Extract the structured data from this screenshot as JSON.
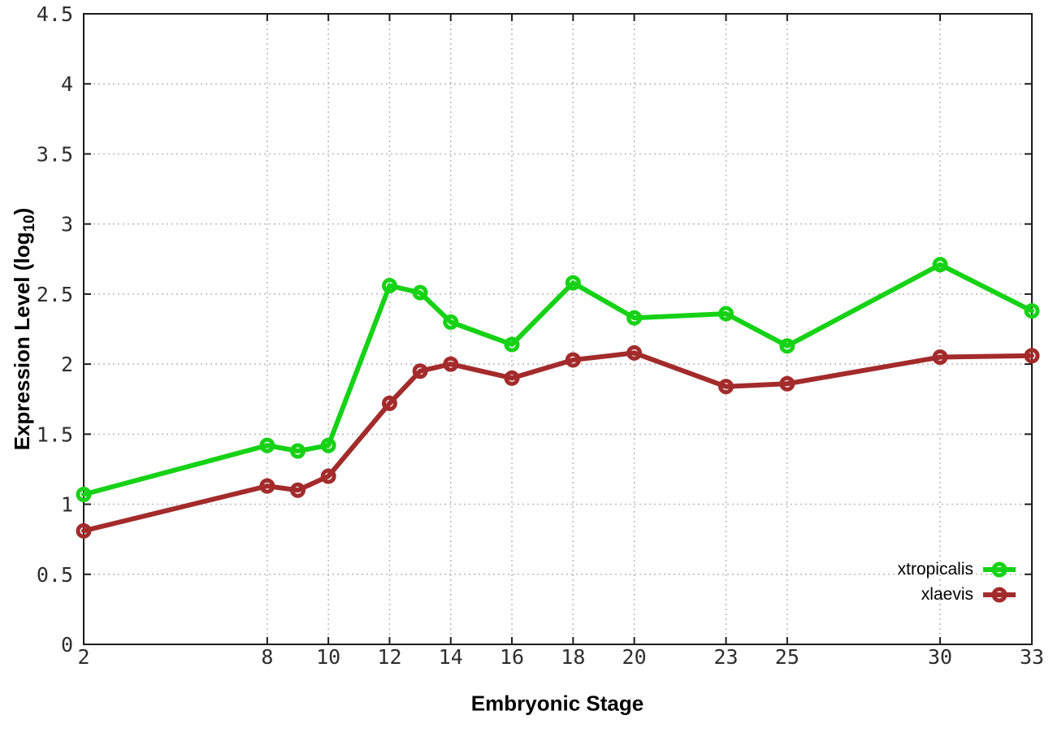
{
  "labels": {
    "x_title": "Embryonic Stage",
    "y_title_main": "Expression Level (log",
    "y_title_sub": "10",
    "y_title_close": ")"
  },
  "chart_data": {
    "type": "line",
    "title": "",
    "xlabel": "Embryonic Stage",
    "ylabel": "Expression Level (log10)",
    "x": [
      2,
      8,
      9,
      10,
      12,
      13,
      14,
      16,
      18,
      20,
      23,
      25,
      30,
      33
    ],
    "series": [
      {
        "name": "xtropicalis",
        "color": "#16d216",
        "values": [
          1.07,
          1.42,
          1.38,
          1.42,
          2.56,
          2.51,
          2.3,
          2.14,
          2.58,
          2.33,
          2.36,
          2.13,
          2.71,
          2.38
        ]
      },
      {
        "name": "xlaevis",
        "color": "#a32b2b",
        "values": [
          0.81,
          1.13,
          1.1,
          1.2,
          1.72,
          1.95,
          2.0,
          1.9,
          2.03,
          2.08,
          1.84,
          1.86,
          2.05,
          2.06
        ]
      }
    ],
    "x_ticks": {
      "values": [
        2,
        8,
        10,
        12,
        14,
        16,
        18,
        20,
        23,
        25,
        30,
        33
      ],
      "labels": [
        "2",
        "8",
        "10",
        "12",
        "14",
        "16",
        "18",
        "20",
        "23",
        "25",
        "30",
        "33"
      ]
    },
    "y_ticks": {
      "values": [
        0,
        0.5,
        1,
        1.5,
        2,
        2.5,
        3,
        3.5,
        4,
        4.5
      ],
      "labels": [
        "0",
        "0.5",
        "1",
        "1.5",
        "2",
        "2.5",
        "3",
        "3.5",
        "4",
        "4.5"
      ]
    },
    "xlim": [
      2,
      33
    ],
    "ylim": [
      0,
      4.5
    ],
    "grid": true,
    "grid_style": "dotted",
    "legend_position": "inside-bottom-right",
    "marker": "open-circle"
  }
}
